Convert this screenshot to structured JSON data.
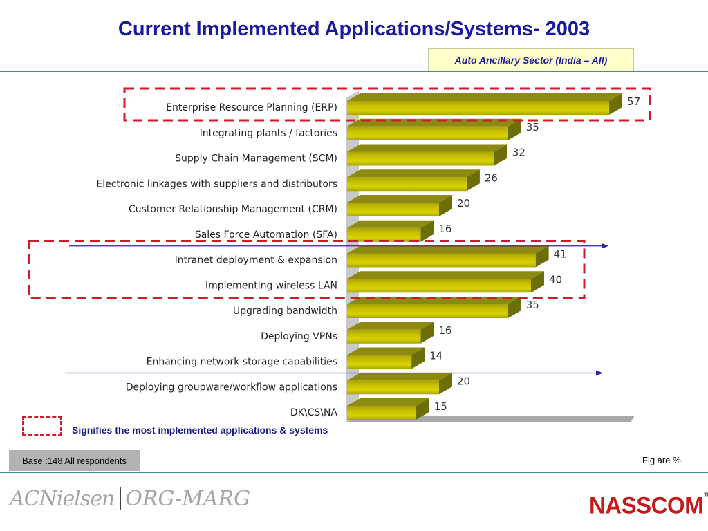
{
  "title": "Current Implemented Applications/Systems- 2003",
  "subtitle": "Auto Ancillary Sector (India – All)",
  "legend_text": "Signifies the most implemented applications & systems",
  "base_note": "Base :148 All respondents",
  "fig_note": "Fig are %",
  "logos": {
    "partner": "ACNielsen",
    "partner_suffix": "ORG-MARG",
    "nasscom": "NASSCOM",
    "trademark": "TM"
  },
  "colors": {
    "title": "#1a1aa0",
    "bar_front": "#c8c000",
    "bar_top": "#8c8a10",
    "bar_side": "#6e6e08",
    "highlight_dash": "#d11a2a",
    "divider_arrow": "#2a2a9a",
    "teal_line": "#3d8f8a"
  },
  "chart_data": {
    "type": "bar",
    "orientation": "horizontal",
    "categories": [
      "Enterprise Resource Planning (ERP)",
      "Integrating plants / factories",
      "Supply Chain Management (SCM)",
      "Electronic linkages with suppliers and distributors",
      "Customer Relationship Management (CRM)",
      "Sales Force Automation (SFA)",
      "Intranet deployment & expansion",
      "Implementing wireless LAN",
      "Upgrading bandwidth",
      "Deploying VPNs",
      "Enhancing network storage capabilities",
      "Deploying groupware/workflow applications",
      "DK\\CS\\NA"
    ],
    "values": [
      57,
      35,
      32,
      26,
      20,
      16,
      41,
      40,
      35,
      16,
      14,
      20,
      15
    ],
    "highlighted_groups": [
      [
        0
      ],
      [
        6,
        7
      ]
    ],
    "divider_arrows_after": [
      5,
      10
    ],
    "xlabel": "",
    "ylabel": "",
    "grid": false
  }
}
